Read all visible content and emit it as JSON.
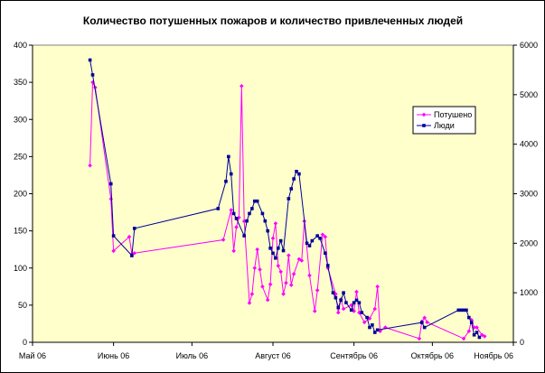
{
  "chart_data": {
    "type": "line",
    "title": "Количество потушенных пожаров и количество привлеченных людей",
    "xlabel": "",
    "ylabel": "",
    "y2label": "",
    "xlim": [
      "2006-05-01",
      "2006-11-01"
    ],
    "ylim": [
      0,
      400
    ],
    "y2lim": [
      0,
      6000
    ],
    "x_tick_labels": [
      "Май 06",
      "Июнь 06",
      "Июль 06",
      "Август 06",
      "Сентябрь 06",
      "Октябрь 06",
      "Ноябрь 06"
    ],
    "x_tick_dates": [
      "2006-05-01",
      "2006-06-01",
      "2006-07-01",
      "2006-08-01",
      "2006-09-01",
      "2006-10-01",
      "2006-11-01"
    ],
    "y_ticks": [
      0,
      50,
      100,
      150,
      200,
      250,
      300,
      350,
      400
    ],
    "y2_ticks": [
      0,
      1000,
      2000,
      3000,
      4000,
      5000,
      6000
    ],
    "grid": false,
    "legend_position": "right",
    "plot_background": "#ffffcc",
    "series": [
      {
        "name": "Потушено",
        "axis": "left",
        "color": "#ff00ff",
        "marker": "diamond",
        "points": [
          [
            "2006-05-23",
            238
          ],
          [
            "2006-05-24",
            350
          ],
          [
            "2006-05-25",
            343
          ],
          [
            "2006-05-31",
            193
          ],
          [
            "2006-06-01",
            123
          ],
          [
            "2006-06-07",
            142
          ],
          [
            "2006-06-08",
            119
          ],
          [
            "2006-06-09",
            120
          ],
          [
            "2006-07-13",
            138
          ],
          [
            "2006-07-16",
            178
          ],
          [
            "2006-07-17",
            123
          ],
          [
            "2006-07-18",
            155
          ],
          [
            "2006-07-19",
            168
          ],
          [
            "2006-07-20",
            345
          ],
          [
            "2006-07-21",
            163
          ],
          [
            "2006-07-23",
            53
          ],
          [
            "2006-07-24",
            65
          ],
          [
            "2006-07-25",
            100
          ],
          [
            "2006-07-26",
            125
          ],
          [
            "2006-07-27",
            98
          ],
          [
            "2006-07-28",
            75
          ],
          [
            "2006-07-30",
            57
          ],
          [
            "2006-07-31",
            78
          ],
          [
            "2006-08-01",
            140
          ],
          [
            "2006-08-02",
            160
          ],
          [
            "2006-08-03",
            103
          ],
          [
            "2006-08-04",
            95
          ],
          [
            "2006-08-05",
            65
          ],
          [
            "2006-08-06",
            80
          ],
          [
            "2006-08-07",
            117
          ],
          [
            "2006-08-08",
            77
          ],
          [
            "2006-08-09",
            92
          ],
          [
            "2006-08-11",
            112
          ],
          [
            "2006-08-12",
            110
          ],
          [
            "2006-08-13",
            163
          ],
          [
            "2006-08-15",
            90
          ],
          [
            "2006-08-17",
            42
          ],
          [
            "2006-08-18",
            70
          ],
          [
            "2006-08-20",
            145
          ],
          [
            "2006-08-21",
            142
          ],
          [
            "2006-08-22",
            100
          ],
          [
            "2006-08-25",
            65
          ],
          [
            "2006-08-26",
            40
          ],
          [
            "2006-08-27",
            58
          ],
          [
            "2006-08-28",
            45
          ],
          [
            "2006-08-31",
            50
          ],
          [
            "2006-09-01",
            42
          ],
          [
            "2006-09-02",
            68
          ],
          [
            "2006-09-03",
            40
          ],
          [
            "2006-09-05",
            27
          ],
          [
            "2006-09-07",
            32
          ],
          [
            "2006-09-09",
            45
          ],
          [
            "2006-09-10",
            75
          ],
          [
            "2006-09-11",
            15
          ],
          [
            "2006-09-13",
            20
          ],
          [
            "2006-09-26",
            5
          ],
          [
            "2006-09-27",
            28
          ],
          [
            "2006-09-28",
            33
          ],
          [
            "2006-09-29",
            27
          ],
          [
            "2006-10-13",
            5
          ],
          [
            "2006-10-15",
            15
          ],
          [
            "2006-10-16",
            30
          ],
          [
            "2006-10-17",
            20
          ],
          [
            "2006-10-18",
            20
          ],
          [
            "2006-10-20",
            10
          ],
          [
            "2006-10-21",
            8
          ]
        ]
      },
      {
        "name": "Люди",
        "axis": "right",
        "color": "#000099",
        "marker": "square",
        "points": [
          [
            "2006-05-23",
            5700
          ],
          [
            "2006-05-24",
            5400
          ],
          [
            "2006-05-31",
            3200
          ],
          [
            "2006-06-01",
            2150
          ],
          [
            "2006-06-08",
            1750
          ],
          [
            "2006-06-09",
            2300
          ],
          [
            "2006-07-11",
            2700
          ],
          [
            "2006-07-14",
            3250
          ],
          [
            "2006-07-15",
            3750
          ],
          [
            "2006-07-16",
            3400
          ],
          [
            "2006-07-17",
            2600
          ],
          [
            "2006-07-18",
            2500
          ],
          [
            "2006-07-21",
            2150
          ],
          [
            "2006-07-22",
            2450
          ],
          [
            "2006-07-23",
            2600
          ],
          [
            "2006-07-24",
            2700
          ],
          [
            "2006-07-25",
            2850
          ],
          [
            "2006-07-26",
            2850
          ],
          [
            "2006-07-28",
            2600
          ],
          [
            "2006-07-29",
            2450
          ],
          [
            "2006-07-30",
            2250
          ],
          [
            "2006-07-31",
            1900
          ],
          [
            "2006-08-01",
            1800
          ],
          [
            "2006-08-02",
            1700
          ],
          [
            "2006-08-03",
            1900
          ],
          [
            "2006-08-04",
            2050
          ],
          [
            "2006-08-05",
            1850
          ],
          [
            "2006-08-07",
            2900
          ],
          [
            "2006-08-08",
            3100
          ],
          [
            "2006-08-09",
            3300
          ],
          [
            "2006-08-10",
            3450
          ],
          [
            "2006-08-11",
            3400
          ],
          [
            "2006-08-14",
            2000
          ],
          [
            "2006-08-15",
            1950
          ],
          [
            "2006-08-16",
            2050
          ],
          [
            "2006-08-18",
            2150
          ],
          [
            "2006-08-19",
            2100
          ],
          [
            "2006-08-21",
            1800
          ],
          [
            "2006-08-22",
            1550
          ],
          [
            "2006-08-24",
            1000
          ],
          [
            "2006-08-25",
            900
          ],
          [
            "2006-08-26",
            700
          ],
          [
            "2006-08-27",
            850
          ],
          [
            "2006-08-28",
            1000
          ],
          [
            "2006-08-29",
            800
          ],
          [
            "2006-08-31",
            650
          ],
          [
            "2006-09-01",
            800
          ],
          [
            "2006-09-02",
            850
          ],
          [
            "2006-09-03",
            800
          ],
          [
            "2006-09-04",
            600
          ],
          [
            "2006-09-06",
            500
          ],
          [
            "2006-09-07",
            300
          ],
          [
            "2006-09-08",
            350
          ],
          [
            "2006-09-09",
            200
          ],
          [
            "2006-09-10",
            250
          ],
          [
            "2006-09-27",
            400
          ],
          [
            "2006-09-28",
            300
          ],
          [
            "2006-10-11",
            650
          ],
          [
            "2006-10-12",
            650
          ],
          [
            "2006-10-13",
            650
          ],
          [
            "2006-10-14",
            650
          ],
          [
            "2006-10-15",
            500
          ],
          [
            "2006-10-16",
            400
          ],
          [
            "2006-10-17",
            150
          ],
          [
            "2006-10-18",
            200
          ],
          [
            "2006-10-19",
            100
          ]
        ]
      }
    ]
  }
}
